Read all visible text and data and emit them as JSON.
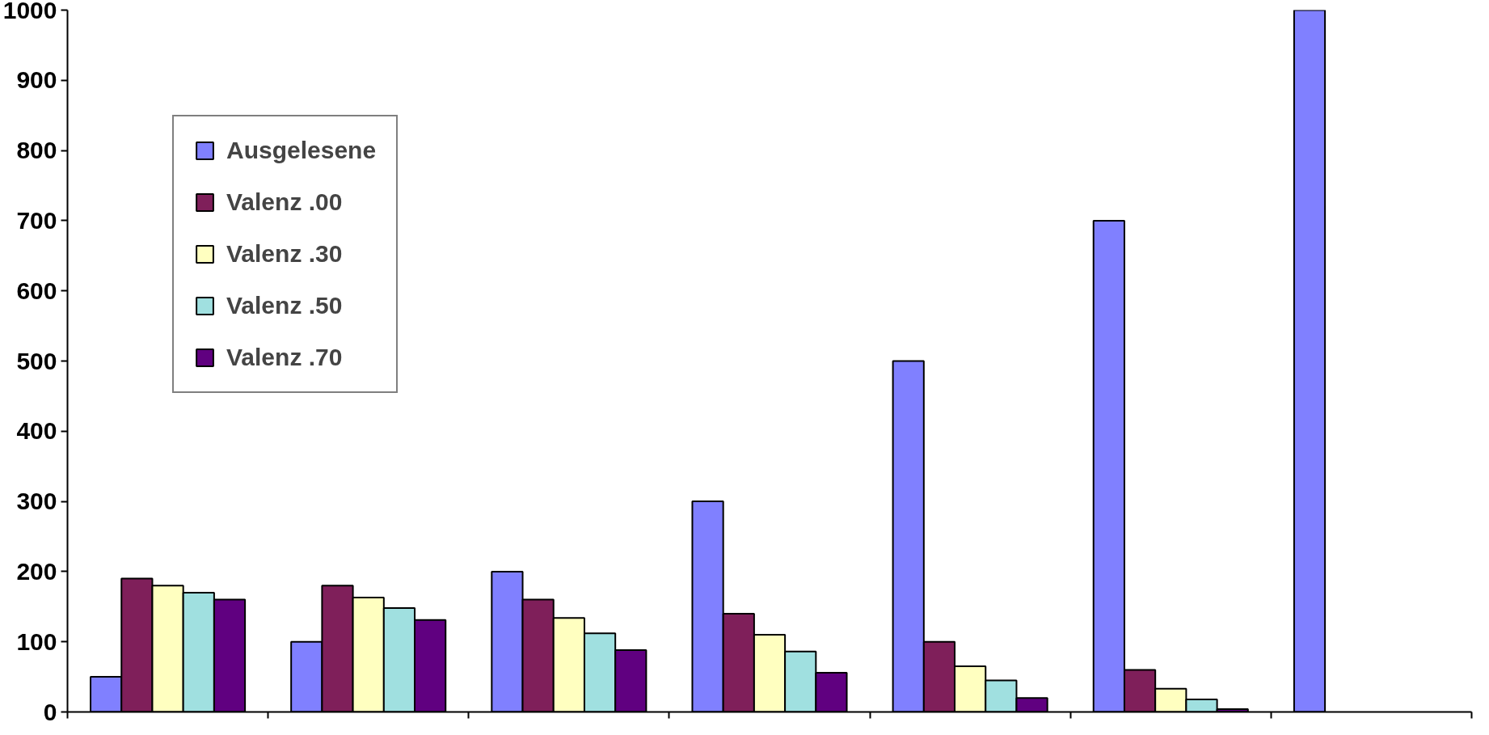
{
  "chart_data": {
    "type": "bar",
    "categories": [
      null,
      null,
      null,
      null,
      null,
      null,
      null
    ],
    "series": [
      {
        "name": "Ausgelesene",
        "color": "#8080ff",
        "values": [
          50,
          100,
          200,
          300,
          500,
          700,
          1000
        ]
      },
      {
        "name": "Valenz .00",
        "color": "#7f1f5a",
        "values": [
          190,
          180,
          160,
          140,
          100,
          60,
          null
        ]
      },
      {
        "name": "Valenz .30",
        "color": "#ffffc0",
        "values": [
          180,
          163,
          134,
          110,
          65,
          33,
          null
        ]
      },
      {
        "name": "Valenz .50",
        "color": "#a0e0e0",
        "values": [
          170,
          148,
          112,
          86,
          45,
          18,
          null
        ]
      },
      {
        "name": "Valenz .70",
        "color": "#600080",
        "values": [
          160,
          131,
          88,
          56,
          20,
          4,
          null
        ]
      }
    ],
    "ylim": [
      0,
      1000
    ],
    "yticks": [
      0,
      100,
      200,
      300,
      400,
      500,
      600,
      700,
      800,
      900,
      1000
    ],
    "grid": false,
    "legend": "top left"
  }
}
